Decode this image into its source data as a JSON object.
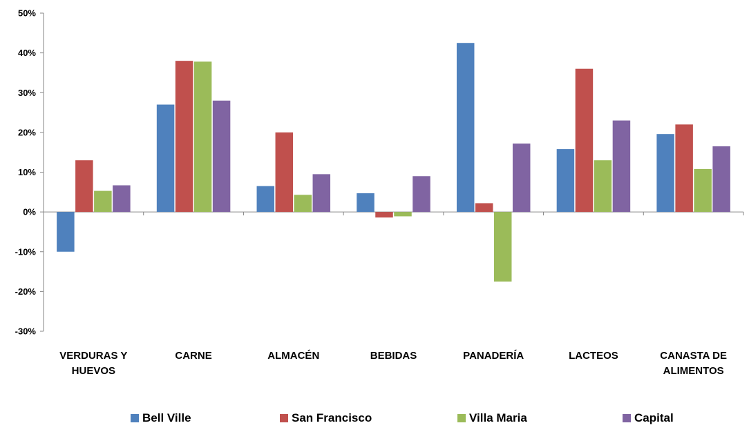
{
  "chart_data": {
    "type": "bar",
    "categories": [
      [
        "VERDURAS Y",
        "HUEVOS"
      ],
      [
        "CARNE"
      ],
      [
        "ALMACÉN"
      ],
      [
        "BEBIDAS"
      ],
      [
        "PANADERÍA"
      ],
      [
        "LACTEOS"
      ],
      [
        "CANASTA DE",
        "ALIMENTOS"
      ]
    ],
    "series": [
      {
        "name": "Bell Ville",
        "color": "#4F81BD",
        "values": [
          -10,
          27,
          6.5,
          4.7,
          42.5,
          15.8,
          19.6
        ]
      },
      {
        "name": "San Francisco",
        "color": "#C0504D",
        "values": [
          13,
          38,
          20,
          -1.4,
          2.2,
          36,
          22
        ]
      },
      {
        "name": "Villa Maria",
        "color": "#9BBB59",
        "values": [
          5.3,
          37.8,
          4.3,
          -1.1,
          -17.5,
          13,
          10.8
        ]
      },
      {
        "name": "Capital",
        "color": "#8064A2",
        "values": [
          6.7,
          28,
          9.5,
          9,
          17.2,
          23,
          16.5
        ]
      }
    ],
    "yticks": [
      "50%",
      "40%",
      "30%",
      "20%",
      "10%",
      "0%",
      "-10%",
      "-20%",
      "-30%"
    ],
    "ylim": [
      -30,
      50
    ],
    "grid": false,
    "legend_position": "bottom",
    "xlabel": "",
    "ylabel": "",
    "title": ""
  }
}
